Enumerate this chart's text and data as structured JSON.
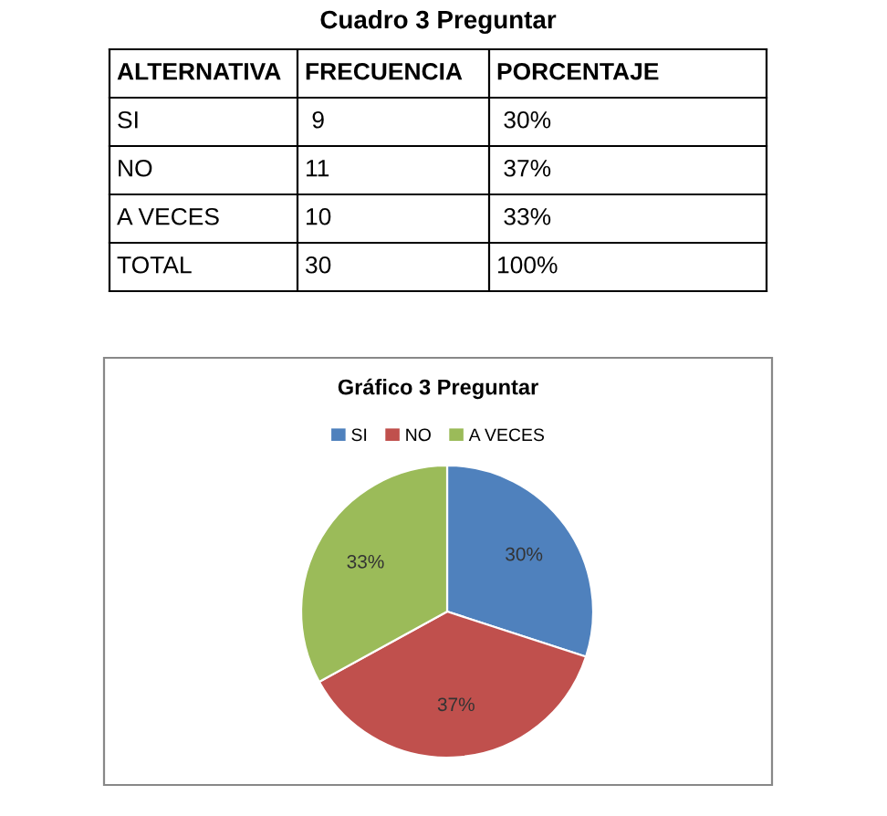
{
  "chart_data": [
    {
      "type": "other",
      "title": "Cuadro 3 Preguntar",
      "annotations": [
        "ALTERNATIVA",
        "FRECUENCIA",
        "PORCENTAJE",
        "SI",
        " 9",
        " 30%",
        "NO",
        "11",
        " 37%",
        "A VECES",
        "10",
        " 33%",
        "TOTAL",
        "30",
        "100%"
      ]
    },
    {
      "type": "pie",
      "title": "Gráfico 3 Preguntar",
      "categories": [
        "SI",
        "NO",
        "A VECES"
      ],
      "values": [
        30,
        37,
        33
      ],
      "colors": [
        "#4f81bd",
        "#c0504d",
        "#9bbb59"
      ],
      "value_labels": [
        "30%",
        "37%",
        "33%"
      ],
      "legend": "top"
    }
  ]
}
